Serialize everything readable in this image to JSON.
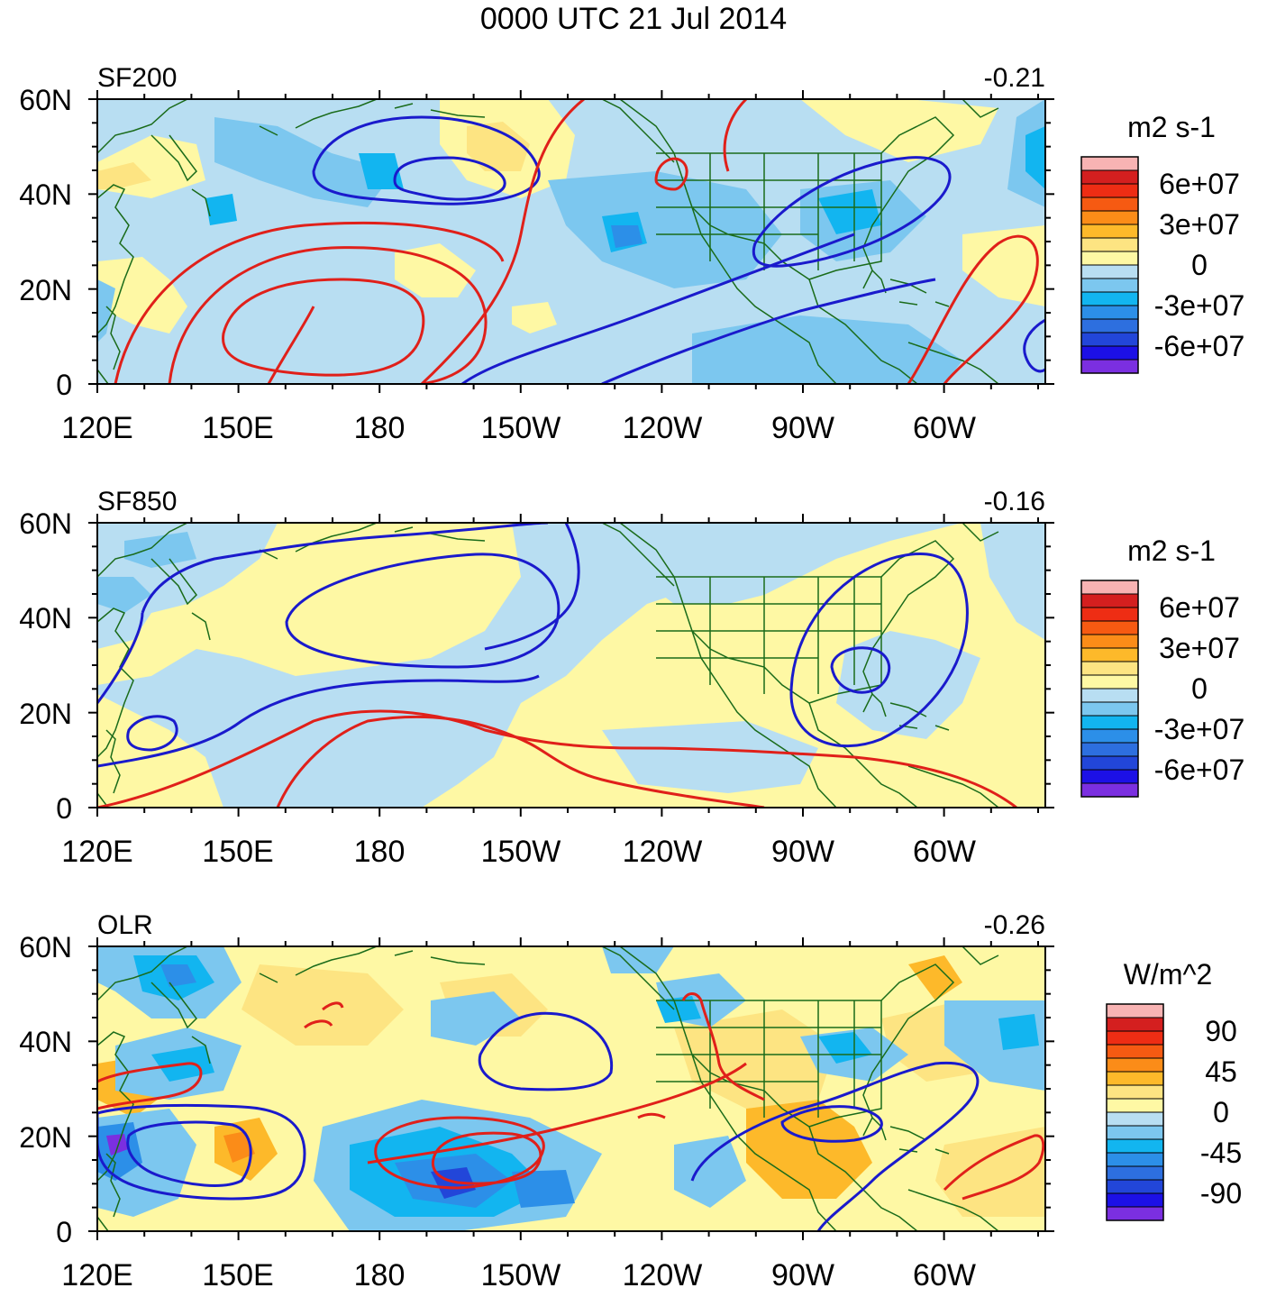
{
  "title": "0000 UTC 21 Jul 2014",
  "x_ticks": [
    "120E",
    "150E",
    "180",
    "150W",
    "120W",
    "90W",
    "60W"
  ],
  "y_ticks": [
    "60N",
    "40N",
    "20N",
    "0"
  ],
  "colors": {
    "land_outline": "#1a6b1a",
    "positive_contour": "#e0201a",
    "negative_contour": "#1a1acc",
    "frame": "#000000"
  },
  "panels": [
    {
      "id": "sf200",
      "label": "SF200",
      "value": "-0.21",
      "units": "m2 s-1",
      "colorbar": {
        "labels": [
          "6e+07",
          "3e+07",
          "0",
          "-3e+07",
          "-6e+07"
        ],
        "colors": [
          "#f8b3b3",
          "#d41f1f",
          "#ee2d14",
          "#f65a12",
          "#fb8c18",
          "#fdb92a",
          "#fde482",
          "#fef8a4",
          "#b8def2",
          "#7cc7ef",
          "#12b5f0",
          "#2c8fe8",
          "#2d6fdf",
          "#2246d9",
          "#1c10e6",
          "#7b2fe0"
        ]
      }
    },
    {
      "id": "sf850",
      "label": "SF850",
      "value": "-0.16",
      "units": "m2 s-1",
      "colorbar": {
        "labels": [
          "6e+07",
          "3e+07",
          "0",
          "-3e+07",
          "-6e+07"
        ],
        "colors": [
          "#f8b3b3",
          "#d41f1f",
          "#ee2d14",
          "#f65a12",
          "#fb8c18",
          "#fdb92a",
          "#fde482",
          "#fef8a4",
          "#b8def2",
          "#7cc7ef",
          "#12b5f0",
          "#2c8fe8",
          "#2d6fdf",
          "#2246d9",
          "#1c10e6",
          "#7b2fe0"
        ]
      }
    },
    {
      "id": "olr",
      "label": "OLR",
      "value": "-0.26",
      "units": "W/m^2",
      "colorbar": {
        "labels": [
          "90",
          "45",
          "0",
          "-45",
          "-90"
        ],
        "colors": [
          "#f8b3b3",
          "#d41f1f",
          "#ee2d14",
          "#f65a12",
          "#fb8c18",
          "#fdb92a",
          "#fde482",
          "#fef8a4",
          "#b8def2",
          "#7cc7ef",
          "#12b5f0",
          "#2c8fe8",
          "#2d6fdf",
          "#2246d9",
          "#1c10e6",
          "#7b2fe0"
        ]
      }
    }
  ]
}
